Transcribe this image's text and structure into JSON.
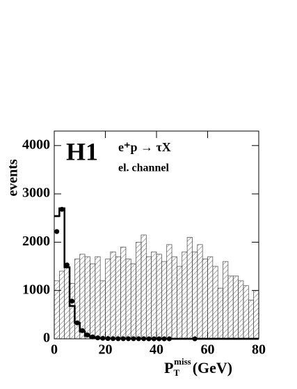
{
  "chart_data": {
    "type": "histogram",
    "annotations": {
      "logo": "H1",
      "process": "e⁺p → τX",
      "channel": "el. channel"
    },
    "y_label": "events",
    "x_label": {
      "main": "P",
      "sub": "T",
      "sup": "miss",
      "unit": "(GeV)"
    },
    "bins": [
      0,
      2,
      4,
      6,
      8,
      10,
      12,
      14,
      16,
      18,
      20,
      22,
      24,
      26,
      28,
      30,
      32,
      34,
      36,
      38,
      40,
      42,
      44,
      46,
      48,
      50,
      52,
      54,
      56,
      58,
      60,
      62,
      64,
      66,
      68,
      70,
      72,
      74,
      76,
      78,
      80
    ],
    "series": [
      {
        "style": "hatched",
        "color": "#444444",
        "values": [
          1200,
          1400,
          1480,
          1150,
          1650,
          1750,
          1700,
          1550,
          1700,
          1200,
          1650,
          1800,
          1700,
          1900,
          1650,
          1550,
          2000,
          2150,
          1700,
          1800,
          1750,
          1600,
          1950,
          1700,
          1500,
          1800,
          2100,
          1800,
          1950,
          1650,
          1700,
          1500,
          1050,
          1600,
          1300,
          1300,
          1200,
          1100,
          800,
          1000
        ]
      },
      {
        "style": "step",
        "color": "#000000",
        "values": [
          2540,
          2700,
          1480,
          680,
          330,
          150,
          60,
          30,
          15,
          8,
          5,
          3,
          2,
          2,
          1,
          1,
          1,
          1,
          0,
          0,
          0,
          0,
          0,
          0,
          0,
          0,
          0,
          0,
          0,
          0,
          0,
          0,
          0,
          0,
          0,
          0,
          0,
          0,
          0,
          0
        ]
      }
    ],
    "points": {
      "color": "#000000",
      "x": [
        1,
        3,
        5,
        7,
        9,
        11,
        13,
        15,
        17,
        19,
        21,
        23,
        25,
        27,
        29,
        31,
        33,
        35,
        37,
        39,
        41,
        43,
        45,
        55
      ],
      "values": [
        2220,
        2680,
        1530,
        780,
        330,
        170,
        80,
        40,
        20,
        10,
        5,
        3,
        2,
        2,
        1,
        1,
        1,
        1,
        0,
        0,
        0,
        0,
        0,
        0
      ]
    },
    "xlim": [
      0,
      80
    ],
    "xticks": [
      0,
      20,
      40,
      60,
      80
    ],
    "ylim": [
      0,
      4300
    ],
    "yticks": [
      0,
      1000,
      2000,
      3000,
      4000
    ]
  }
}
